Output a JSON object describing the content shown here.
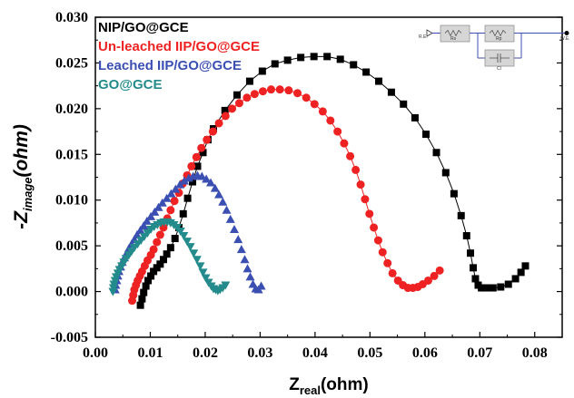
{
  "chart_data": {
    "type": "scatter",
    "xlabel_main": "Z",
    "xlabel_sub": "real",
    "xlabel_unit": "(ohm)",
    "ylabel_main": "-Z",
    "ylabel_sub": "image",
    "ylabel_unit": "(ohm)",
    "xlim": [
      0.0,
      0.085
    ],
    "ylim": [
      -0.005,
      0.03
    ],
    "xticks": [
      0.0,
      0.01,
      0.02,
      0.03,
      0.04,
      0.05,
      0.06,
      0.07,
      0.08
    ],
    "xtick_labels": [
      "0.00",
      "0.01",
      "0.02",
      "0.03",
      "0.04",
      "0.05",
      "0.06",
      "0.07",
      "0.08"
    ],
    "yticks": [
      -0.005,
      0.0,
      0.005,
      0.01,
      0.015,
      0.02,
      0.025,
      0.03
    ],
    "ytick_labels": [
      "-0.005",
      "0.000",
      "0.005",
      "0.010",
      "0.015",
      "0.020",
      "0.025",
      "0.030"
    ],
    "legend_position": "top-left",
    "series": [
      {
        "name": "NIP/GO@GCE",
        "color": "#000000",
        "marker": "square",
        "fit_line": true,
        "x": [
          0.0082,
          0.0085,
          0.0088,
          0.0092,
          0.0096,
          0.0101,
          0.0106,
          0.0112,
          0.0118,
          0.0124,
          0.013,
          0.0137,
          0.0145,
          0.0152,
          0.016,
          0.0168,
          0.0177,
          0.0186,
          0.0196,
          0.0205,
          0.0215,
          0.0236,
          0.0258,
          0.0281,
          0.0304,
          0.0327,
          0.035,
          0.0374,
          0.0398,
          0.0422,
          0.0446,
          0.047,
          0.0493,
          0.0516,
          0.0539,
          0.0561,
          0.0582,
          0.0602,
          0.0621,
          0.0638,
          0.0653,
          0.0666,
          0.0676,
          0.0683,
          0.0688,
          0.0692,
          0.0697,
          0.0703,
          0.0712,
          0.0724,
          0.0738,
          0.0752,
          0.0765,
          0.0775,
          0.0783
        ],
        "y": [
          -0.0015,
          -0.0008,
          -0.0001,
          0.0006,
          0.0012,
          0.0017,
          0.0022,
          0.0026,
          0.003,
          0.0035,
          0.0041,
          0.0048,
          0.0058,
          0.007,
          0.0085,
          0.0102,
          0.012,
          0.0137,
          0.0152,
          0.0166,
          0.0178,
          0.0198,
          0.0215,
          0.023,
          0.0241,
          0.0249,
          0.0253,
          0.0256,
          0.0257,
          0.0257,
          0.0254,
          0.0248,
          0.024,
          0.023,
          0.0218,
          0.0205,
          0.019,
          0.0172,
          0.0152,
          0.013,
          0.0107,
          0.0083,
          0.0061,
          0.0042,
          0.0026,
          0.0014,
          0.0007,
          0.0004,
          0.0004,
          0.0004,
          0.0005,
          0.0008,
          0.0014,
          0.0021,
          0.0028
        ]
      },
      {
        "name": "Un-leached IIP/GO@GCE",
        "color": "#ee2222",
        "marker": "circle",
        "fit_line": true,
        "x": [
          0.0067,
          0.0069,
          0.0071,
          0.0074,
          0.0077,
          0.0081,
          0.0085,
          0.009,
          0.0095,
          0.0101,
          0.0106,
          0.0112,
          0.0118,
          0.0124,
          0.0131,
          0.0137,
          0.0144,
          0.0152,
          0.0159,
          0.0167,
          0.0175,
          0.0184,
          0.0193,
          0.0203,
          0.0214,
          0.0225,
          0.0237,
          0.0249,
          0.0262,
          0.0276,
          0.029,
          0.0305,
          0.032,
          0.0336,
          0.0352,
          0.0368,
          0.0384,
          0.0399,
          0.0414,
          0.0428,
          0.0441,
          0.0453,
          0.0464,
          0.0474,
          0.0483,
          0.0491,
          0.0499,
          0.0507,
          0.0515,
          0.0523,
          0.0532,
          0.0541,
          0.0551,
          0.056,
          0.0569,
          0.0578,
          0.0587,
          0.0596,
          0.0606,
          0.0617,
          0.0627
        ],
        "y": [
          -0.001,
          -0.0004,
          0.0002,
          0.0007,
          0.0012,
          0.0017,
          0.0022,
          0.0028,
          0.0034,
          0.004,
          0.0046,
          0.0054,
          0.0062,
          0.007,
          0.008,
          0.0089,
          0.0099,
          0.0108,
          0.0118,
          0.0127,
          0.0137,
          0.0147,
          0.0157,
          0.0166,
          0.0175,
          0.0184,
          0.0192,
          0.02,
          0.0206,
          0.0212,
          0.0216,
          0.0219,
          0.0221,
          0.0221,
          0.022,
          0.0217,
          0.0212,
          0.0205,
          0.0197,
          0.0187,
          0.0175,
          0.0162,
          0.0148,
          0.0133,
          0.0117,
          0.0101,
          0.0085,
          0.007,
          0.0056,
          0.0043,
          0.0031,
          0.002,
          0.0012,
          0.0007,
          0.0004,
          0.0004,
          0.0005,
          0.0008,
          0.0012,
          0.0017,
          0.0023
        ]
      },
      {
        "name": "Leached IIP/GO@GCE",
        "color": "#3b4fb3",
        "marker": "triangle-up",
        "fit_line": false,
        "x": [
          0.0036,
          0.0037,
          0.0039,
          0.0041,
          0.0043,
          0.0046,
          0.0049,
          0.0053,
          0.0057,
          0.0061,
          0.0066,
          0.0071,
          0.0076,
          0.0082,
          0.0088,
          0.0094,
          0.0101,
          0.0108,
          0.0115,
          0.0122,
          0.013,
          0.0138,
          0.0146,
          0.0154,
          0.0162,
          0.017,
          0.0178,
          0.0186,
          0.0194,
          0.0202,
          0.021,
          0.0218,
          0.0225,
          0.0232,
          0.0239,
          0.0246,
          0.0253,
          0.026,
          0.0266,
          0.0272,
          0.0277,
          0.0282,
          0.0287,
          0.0292,
          0.0297,
          0.0302
        ],
        "y": [
          0.0002,
          0.0007,
          0.0012,
          0.0017,
          0.0022,
          0.0027,
          0.0032,
          0.0037,
          0.0042,
          0.0047,
          0.0052,
          0.0057,
          0.0062,
          0.0067,
          0.0072,
          0.0077,
          0.0082,
          0.0087,
          0.0092,
          0.0097,
          0.0102,
          0.0107,
          0.0112,
          0.0117,
          0.0121,
          0.0124,
          0.0126,
          0.0127,
          0.0126,
          0.0123,
          0.0119,
          0.0113,
          0.0106,
          0.0098,
          0.0089,
          0.0079,
          0.0068,
          0.0057,
          0.0046,
          0.0035,
          0.0025,
          0.0016,
          0.0008,
          0.0003,
          0.0002,
          0.0006
        ]
      },
      {
        "name": "GO@GCE",
        "color": "#238b8b",
        "marker": "triangle-down",
        "fit_line": false,
        "x": [
          0.0032,
          0.0033,
          0.0034,
          0.0036,
          0.0038,
          0.0041,
          0.0044,
          0.0048,
          0.0052,
          0.0056,
          0.0061,
          0.0066,
          0.0071,
          0.0077,
          0.0083,
          0.0089,
          0.0095,
          0.0101,
          0.0107,
          0.0113,
          0.0119,
          0.0125,
          0.0131,
          0.0137,
          0.0143,
          0.0149,
          0.0155,
          0.0161,
          0.0167,
          0.0173,
          0.0179,
          0.0185,
          0.0191,
          0.0196,
          0.0201,
          0.0206,
          0.0211,
          0.0215,
          0.0219,
          0.0223,
          0.0227,
          0.0232,
          0.0237
        ],
        "y": [
          0.0,
          0.0004,
          0.0008,
          0.0012,
          0.0016,
          0.002,
          0.0024,
          0.0028,
          0.0032,
          0.0036,
          0.004,
          0.0044,
          0.0048,
          0.0052,
          0.0056,
          0.006,
          0.0064,
          0.0068,
          0.0071,
          0.0073,
          0.0075,
          0.0076,
          0.0076,
          0.0075,
          0.0073,
          0.007,
          0.0066,
          0.0061,
          0.0055,
          0.0049,
          0.0042,
          0.0035,
          0.0028,
          0.0021,
          0.0015,
          0.001,
          0.0006,
          0.0003,
          0.0002,
          0.0001,
          0.0002,
          0.0004,
          0.0007
        ]
      }
    ]
  },
  "inset": {
    "start_label": "R.E.",
    "end_label": "W.E.",
    "components": [
      "Rs",
      "Rp",
      "Cl"
    ]
  }
}
